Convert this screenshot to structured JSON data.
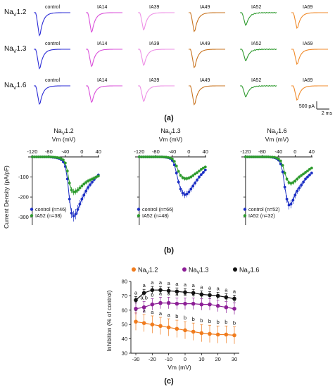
{
  "panel_a": {
    "label": "(a)",
    "rows": [
      {
        "name": "Na",
        "sub": "V",
        "ver": "1.2"
      },
      {
        "name": "Na",
        "sub": "V",
        "ver": "1.3"
      },
      {
        "name": "Na",
        "sub": "V",
        "ver": "1.6"
      }
    ],
    "columns": [
      {
        "label": "control",
        "color": "#2b2bd6"
      },
      {
        "label": "IA14",
        "color": "#d94fd9"
      },
      {
        "label": "IA39",
        "color": "#ee8fe6"
      },
      {
        "label": "IA49",
        "color": "#c8731f"
      },
      {
        "label": "IA52",
        "color": "#2e9a2e"
      },
      {
        "label": "IA69",
        "color": "#f08a2a"
      }
    ],
    "trace_peak_fraction": [
      [
        1.0,
        0.85,
        0.75,
        0.82,
        0.55,
        0.68
      ],
      [
        0.85,
        0.75,
        0.7,
        0.8,
        0.5,
        0.65
      ],
      [
        0.8,
        0.72,
        0.68,
        0.82,
        0.48,
        0.62
      ]
    ],
    "scale_bar": {
      "current": "500 pA",
      "time": "2 ms"
    }
  },
  "panel_b": {
    "label": "(b)",
    "ylabel": "Current Density (pA/pF)",
    "xlabel": "Vm (mV)",
    "plots": [
      {
        "title_main": "Na",
        "title_sub": "V",
        "title_ver": "1.2",
        "legend": [
          {
            "text": "control (n=46)",
            "color": "#1c2fc4"
          },
          {
            "text": "IA52 (n=38)",
            "color": "#2d9b2d"
          }
        ]
      },
      {
        "title_main": "Na",
        "title_sub": "V",
        "title_ver": "1.3",
        "legend": [
          {
            "text": "control (n=66)",
            "color": "#1c2fc4"
          },
          {
            "text": "IA52 (n=48)",
            "color": "#2d9b2d"
          }
        ]
      },
      {
        "title_main": "Na",
        "title_sub": "V",
        "title_ver": "1.6",
        "legend": [
          {
            "text": "control (n=52)",
            "color": "#1c2fc4"
          },
          {
            "text": "IA52 (n=32)",
            "color": "#2d9b2d"
          }
        ]
      }
    ],
    "xticks": [
      -120,
      -80,
      -40,
      0,
      40
    ],
    "yticks": [
      -100,
      -200,
      -300
    ],
    "ylim": [
      -340,
      0
    ],
    "xlim": [
      -130,
      42
    ]
  },
  "chart_data": [
    {
      "type": "line",
      "panel": "b-1",
      "xlabel": "Vm (mV)",
      "ylabel": "Current Density (pA/pF)",
      "x": [
        -120,
        -115,
        -110,
        -105,
        -100,
        -95,
        -90,
        -85,
        -80,
        -75,
        -70,
        -65,
        -60,
        -55,
        -50,
        -45,
        -40,
        -35,
        -30,
        -25,
        -20,
        -15,
        -10,
        -5,
        0,
        5,
        10,
        15,
        20,
        25,
        30,
        35,
        40
      ],
      "series": [
        {
          "name": "control (n=46)",
          "values": [
            0,
            0,
            0,
            0,
            0,
            0,
            0,
            0,
            0,
            -1,
            -2,
            -3,
            -5,
            -8,
            -14,
            -25,
            -48,
            -110,
            -210,
            -280,
            -295,
            -285,
            -262,
            -235,
            -210,
            -190,
            -170,
            -152,
            -138,
            -125,
            -112,
            -100,
            -90
          ]
        },
        {
          "name": "IA52 (n=38)",
          "values": [
            0,
            0,
            0,
            0,
            0,
            0,
            0,
            0,
            0,
            0,
            -1,
            -2,
            -3,
            -5,
            -9,
            -15,
            -30,
            -70,
            -130,
            -165,
            -175,
            -172,
            -165,
            -155,
            -145,
            -135,
            -127,
            -120,
            -115,
            -110,
            -105,
            -100,
            -95
          ]
        }
      ]
    },
    {
      "type": "line",
      "panel": "b-2",
      "xlabel": "Vm (mV)",
      "x": [
        -120,
        -115,
        -110,
        -105,
        -100,
        -95,
        -90,
        -85,
        -80,
        -75,
        -70,
        -65,
        -60,
        -55,
        -50,
        -45,
        -40,
        -35,
        -30,
        -25,
        -20,
        -15,
        -10,
        -5,
        0,
        5,
        10,
        15,
        20,
        25,
        30,
        35,
        40
      ],
      "series": [
        {
          "name": "control (n=66)",
          "values": [
            0,
            0,
            0,
            0,
            0,
            0,
            0,
            0,
            0,
            0,
            0,
            0,
            -1,
            -2,
            -4,
            -8,
            -18,
            -40,
            -80,
            -125,
            -160,
            -180,
            -188,
            -185,
            -175,
            -160,
            -145,
            -130,
            -115,
            -100,
            -88,
            -77,
            -65
          ]
        },
        {
          "name": "IA52 (n=48)",
          "values": [
            0,
            0,
            0,
            0,
            0,
            0,
            0,
            0,
            0,
            0,
            0,
            0,
            -1,
            -1,
            -3,
            -5,
            -10,
            -22,
            -45,
            -72,
            -92,
            -103,
            -108,
            -108,
            -105,
            -100,
            -93,
            -85,
            -78,
            -70,
            -62,
            -55,
            -50
          ]
        }
      ]
    },
    {
      "type": "line",
      "panel": "b-3",
      "xlabel": "Vm (mV)",
      "x": [
        -120,
        -115,
        -110,
        -105,
        -100,
        -95,
        -90,
        -85,
        -80,
        -75,
        -70,
        -65,
        -60,
        -55,
        -50,
        -45,
        -40,
        -35,
        -30,
        -25,
        -20,
        -15,
        -10,
        -5,
        0,
        5,
        10,
        15,
        20,
        25,
        30,
        35,
        40
      ],
      "series": [
        {
          "name": "control (n=52)",
          "values": [
            0,
            0,
            0,
            0,
            0,
            0,
            0,
            0,
            0,
            0,
            0,
            0,
            -1,
            -2,
            -4,
            -8,
            -16,
            -35,
            -75,
            -150,
            -210,
            -240,
            -235,
            -215,
            -190,
            -170,
            -155,
            -140,
            -125,
            -110,
            -100,
            -90,
            -80
          ]
        },
        {
          "name": "IA52 (n=32)",
          "values": [
            0,
            0,
            0,
            0,
            0,
            0,
            0,
            0,
            0,
            0,
            0,
            0,
            -1,
            -1,
            -2,
            -5,
            -10,
            -20,
            -42,
            -80,
            -110,
            -128,
            -132,
            -128,
            -120,
            -110,
            -100,
            -92,
            -85,
            -77,
            -70,
            -62,
            -55
          ]
        }
      ]
    },
    {
      "type": "line",
      "panel": "c",
      "xlabel": "Vm (mV)",
      "ylabel": "Inhibition (% of control)",
      "ylim": [
        30,
        80
      ],
      "yticks": [
        30,
        40,
        50,
        60,
        70,
        80
      ],
      "xticks": [
        -30,
        -20,
        -10,
        0,
        10,
        20,
        30
      ],
      "x": [
        -30,
        -25,
        -20,
        -15,
        -10,
        -5,
        0,
        5,
        10,
        15,
        20,
        25,
        30
      ],
      "series": [
        {
          "name": "NaV1.2",
          "color": "#f07c1e",
          "values": [
            52,
            51,
            50,
            49,
            48,
            47,
            46,
            45,
            44,
            43.5,
            43,
            43,
            42.5
          ],
          "annotations": [
            "a",
            "a",
            "a",
            "a",
            "a",
            "b",
            "b",
            "b",
            "b",
            "b",
            "b",
            "b",
            "b"
          ]
        },
        {
          "name": "NaV1.3",
          "color": "#8c1e96",
          "values": [
            61,
            62,
            64,
            65,
            65,
            64.5,
            64.5,
            64.5,
            64,
            64,
            63,
            62,
            61
          ],
          "annotations": [
            "a",
            "a,b",
            "b",
            "a",
            "a",
            "a",
            "a",
            "a",
            "a",
            "a",
            "a",
            "a",
            "a"
          ]
        },
        {
          "name": "NaV1.6",
          "color": "#111111",
          "values": [
            67,
            72,
            74,
            74,
            73.5,
            73,
            72.5,
            72,
            71,
            70.5,
            70,
            69,
            68
          ],
          "annotations": [
            "a",
            "a",
            "a",
            "a",
            "a",
            "a",
            "a",
            "a",
            "a",
            "a",
            "a",
            "a",
            "a"
          ]
        }
      ],
      "legend_placement": "top"
    }
  ],
  "panel_c": {
    "label": "(c)",
    "ylabel": "Inhibition (% of control)",
    "xlabel": "Vm (mV)"
  }
}
